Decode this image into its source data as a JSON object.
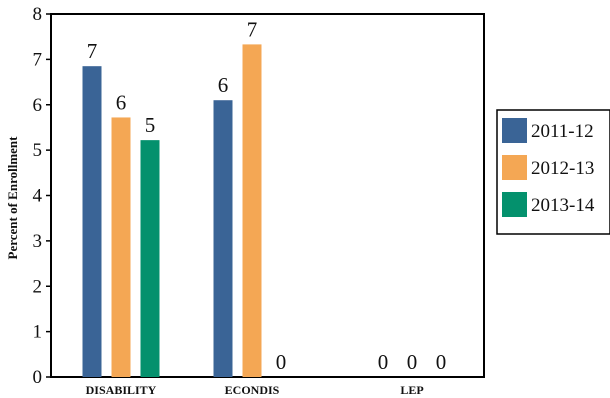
{
  "chart_data": {
    "type": "bar",
    "categories": [
      "DISABILITY",
      "ECONDIS",
      "LEP"
    ],
    "series": [
      {
        "name": "2011-12",
        "values": [
          6.85,
          6.1,
          0
        ],
        "labels": [
          "7",
          "6",
          "0"
        ],
        "color": "#3a6496"
      },
      {
        "name": "2012-13",
        "values": [
          5.72,
          7.33,
          0
        ],
        "labels": [
          "6",
          "7",
          "0"
        ],
        "color": "#f4a754"
      },
      {
        "name": "2013-14",
        "values": [
          5.22,
          0,
          0
        ],
        "labels": [
          "5",
          "0",
          "0"
        ],
        "color": "#04916d"
      }
    ],
    "ylabel": "Percent of Enrollment",
    "xlabel": "",
    "ylim": [
      0,
      8
    ],
    "yticks": [
      "0",
      "1",
      "2",
      "3",
      "4",
      "5",
      "6",
      "7",
      "8"
    ],
    "grid": false,
    "legend_position": "right"
  }
}
